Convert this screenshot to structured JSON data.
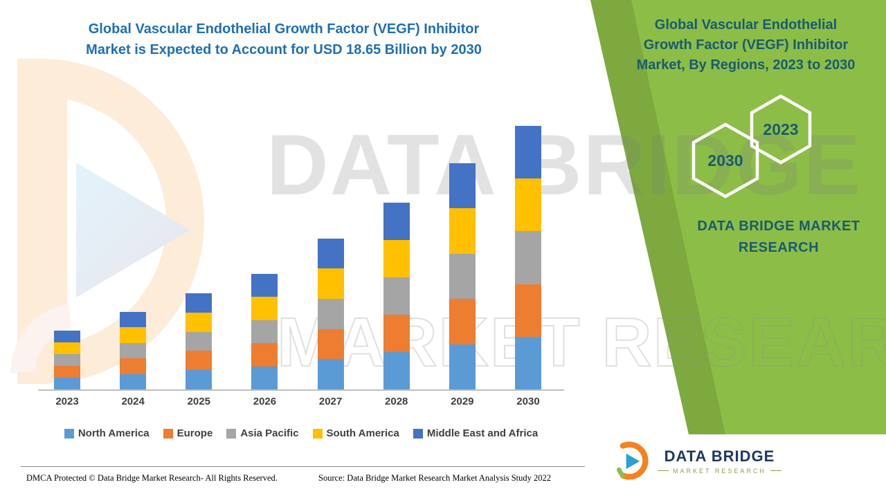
{
  "main_title": {
    "line1": "Global Vascular Endothelial Growth Factor (VEGF) Inhibitor",
    "line2": "Market is Expected to Account for USD 18.65 Billion by 2030"
  },
  "right_panel": {
    "title_line1": "Global Vascular Endothelial",
    "title_line2": "Growth Factor (VEGF) Inhibitor",
    "title_line3": "Market, By Regions, 2023 to 2030",
    "hexagon_front_year": "2030",
    "hexagon_back_year": "2023",
    "brand_line1": "DATA BRIDGE MARKET",
    "brand_line2": "RESEARCH",
    "panel_color": "#8CBE47",
    "text_color": "#1A5A70"
  },
  "watermark": {
    "line1": "DATA BRIDGE",
    "line2": "MARKET RESEARCH"
  },
  "chart_data": {
    "type": "bar",
    "stacked": true,
    "title": "Global Vascular Endothelial Growth Factor (VEGF) Inhibitor Market, By Regions, 2023 to 2030",
    "unit": "USD Billion",
    "annotation": "Expected to account for USD 18.65 Billion by 2030",
    "categories": [
      "2023",
      "2024",
      "2025",
      "2026",
      "2027",
      "2028",
      "2029",
      "2030"
    ],
    "series": [
      {
        "name": "North America",
        "color": "#5B9BD5",
        "values": [
          0.83,
          1.1,
          1.36,
          1.64,
          2.14,
          2.65,
          3.2,
          3.73
        ]
      },
      {
        "name": "Europe",
        "color": "#ED7D31",
        "values": [
          0.83,
          1.1,
          1.36,
          1.64,
          2.14,
          2.65,
          3.2,
          3.73
        ]
      },
      {
        "name": "Asia Pacific",
        "color": "#A5A5A5",
        "values": [
          0.83,
          1.1,
          1.36,
          1.64,
          2.14,
          2.65,
          3.2,
          3.73
        ]
      },
      {
        "name": "South America",
        "color": "#FFC000",
        "values": [
          0.83,
          1.1,
          1.36,
          1.64,
          2.14,
          2.65,
          3.2,
          3.73
        ]
      },
      {
        "name": "Middle East and Africa",
        "color": "#4472C4",
        "values": [
          0.83,
          1.1,
          1.36,
          1.64,
          2.14,
          2.65,
          3.2,
          3.73
        ]
      }
    ],
    "totals_usd_billion_estimated": [
      4.15,
      5.5,
      6.8,
      8.2,
      10.7,
      13.25,
      16.0,
      18.65
    ],
    "ylim": [
      0,
      18.65
    ],
    "y_axis_visible": false,
    "gridlines": false,
    "legend_position": "bottom"
  },
  "footer": {
    "dmca": "DMCA Protected © Data Bridge Market Research- All Rights Reserved.",
    "source": "Source: Data Bridge Market Research Market Analysis Study 2022"
  },
  "logo": {
    "name": "DATA BRIDGE",
    "subtitle": "MARKET RESEARCH"
  }
}
